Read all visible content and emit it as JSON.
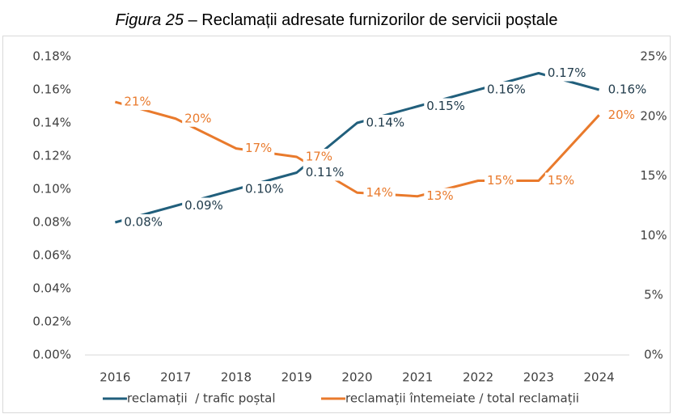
{
  "chart_data": {
    "type": "line",
    "figure_label": "Figura 25",
    "title": " – Reclamații adresate furnizorilor de servicii poștale",
    "categories": [
      "2016",
      "2017",
      "2018",
      "2019",
      "2020",
      "2021",
      "2022",
      "2023",
      "2024"
    ],
    "series": [
      {
        "name": "reclamații  / trafic poștal",
        "color": "#215f7c",
        "axis": "y",
        "values": [
          0.08,
          0.09,
          0.1,
          0.11,
          0.14,
          0.15,
          0.16,
          0.17,
          0.16
        ],
        "value_labels": [
          "0.08%",
          "0.09%",
          "0.10%",
          "0.11%",
          "0.14%",
          "0.15%",
          "0.16%",
          "0.17%",
          "0.16%"
        ]
      },
      {
        "name": "reclamații întemeiate / total reclamații",
        "color": "#e97a2c",
        "axis": "y2",
        "values": [
          21.2,
          19.8,
          17.3,
          16.6,
          13.6,
          13.3,
          14.6,
          14.6,
          20.1
        ],
        "value_labels": [
          "21%",
          "20%",
          "17%",
          "17%",
          "14%",
          "13%",
          "15%",
          "15%",
          "20%"
        ]
      }
    ],
    "ylim": [
      0,
      0.18
    ],
    "yticks": [
      {
        "value": 0,
        "label": "0.00%"
      },
      {
        "value": 0.02,
        "label": "0.02%"
      },
      {
        "value": 0.04,
        "label": "0.04%"
      },
      {
        "value": 0.06,
        "label": "0.06%"
      },
      {
        "value": 0.08,
        "label": "0.08%"
      },
      {
        "value": 0.1,
        "label": "0.10%"
      },
      {
        "value": 0.12,
        "label": "0.12%"
      },
      {
        "value": 0.14,
        "label": "0.14%"
      },
      {
        "value": 0.16,
        "label": "0.16%"
      },
      {
        "value": 0.18,
        "label": "0.18%"
      }
    ],
    "y2lim": [
      0,
      25
    ],
    "y2ticks": [
      {
        "value": 0,
        "label": "0%"
      },
      {
        "value": 5,
        "label": "5%"
      },
      {
        "value": 10,
        "label": "10%"
      },
      {
        "value": 15,
        "label": "15%"
      },
      {
        "value": 20,
        "label": "20%"
      },
      {
        "value": 25,
        "label": "25%"
      }
    ],
    "legend": "bottom"
  }
}
